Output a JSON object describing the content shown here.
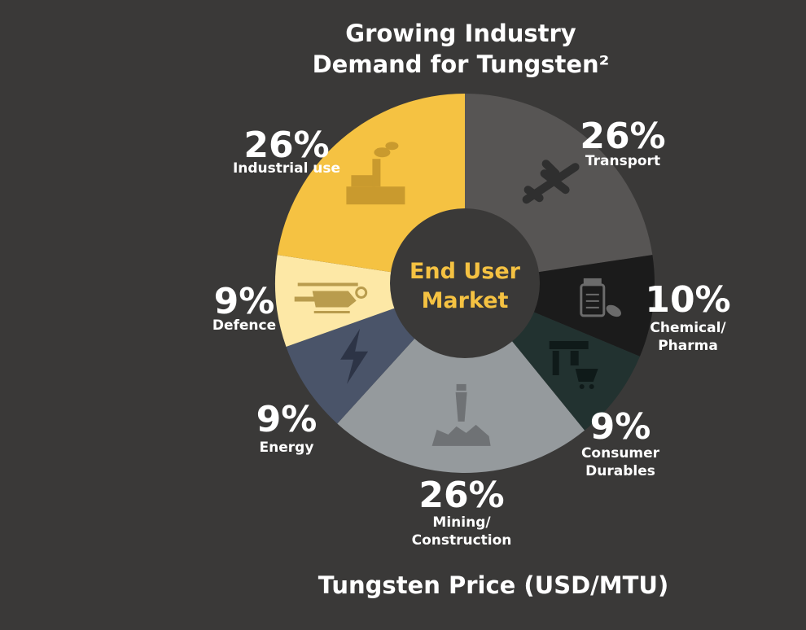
{
  "title": {
    "line1": "Growing Industry",
    "line2": "Demand for Tungsten²"
  },
  "footer": {
    "price_heading": "Tungsten Price (USD/MTU)"
  },
  "chart_data": {
    "type": "pie",
    "variant": "donut",
    "center_label": [
      "End User",
      "Market"
    ],
    "center_label_color": "#f5c242",
    "slices": [
      {
        "label": [
          "Transport"
        ],
        "value": 26,
        "value_label": "26%",
        "color": "#575554",
        "icon": "airplane-icon"
      },
      {
        "label": [
          "Chemical/",
          "Pharma"
        ],
        "value": 10,
        "value_label": "10%",
        "color": "#1b1b1b",
        "icon": "pill-bottle-icon"
      },
      {
        "label": [
          "Consumer",
          "Durables"
        ],
        "value": 9,
        "value_label": "9%",
        "color": "#223230",
        "icon": "shop-cart-icon"
      },
      {
        "label": [
          "Mining/",
          "Construction"
        ],
        "value": 26,
        "value_label": "26%",
        "color": "#959a9d",
        "icon": "drill-icon"
      },
      {
        "label": [
          "Energy"
        ],
        "value": 9,
        "value_label": "9%",
        "color": "#4a5469",
        "icon": "lightning-icon"
      },
      {
        "label": [
          "Defence"
        ],
        "value": 9,
        "value_label": "9%",
        "color": "#fde8a6",
        "icon": "helicopter-icon"
      },
      {
        "label": [
          "Industrial use"
        ],
        "value": 26,
        "value_label": "26%",
        "color": "#f5c242",
        "icon": "factory-icon"
      }
    ]
  }
}
